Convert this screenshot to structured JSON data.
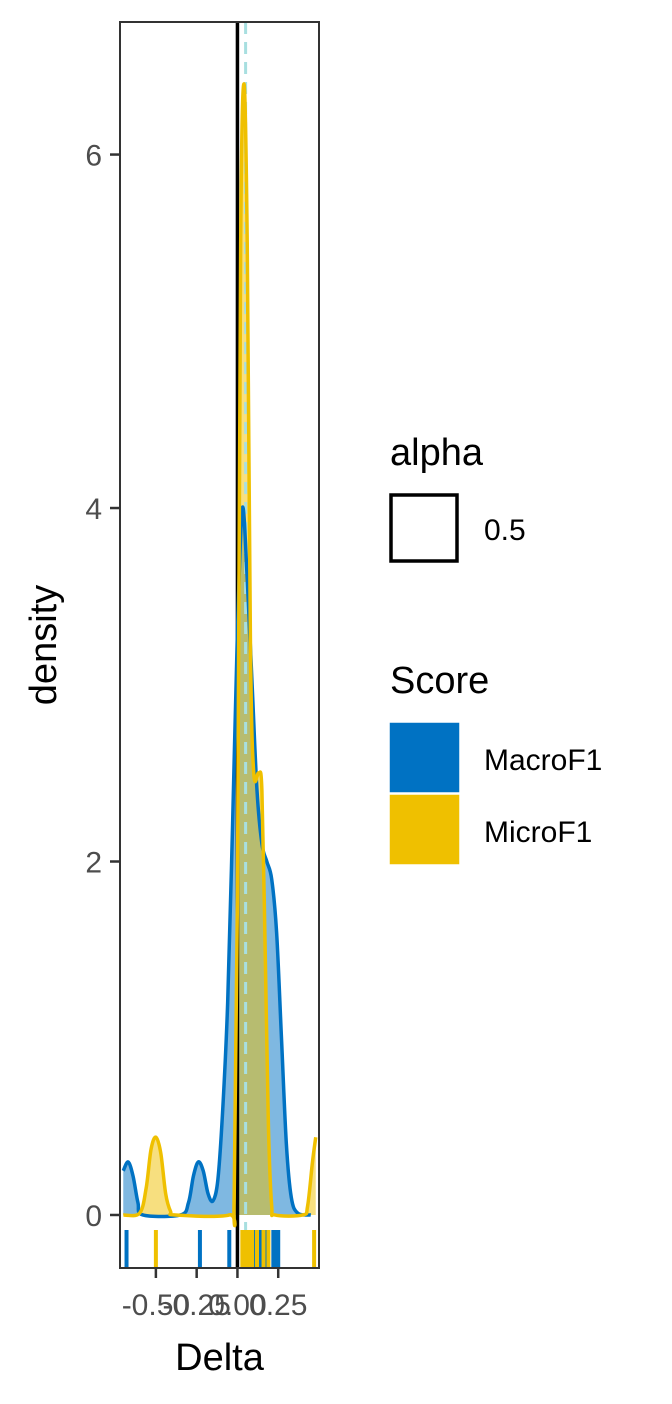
{
  "chart_data": {
    "type": "area",
    "title": "",
    "xlabel": "Delta",
    "ylabel": "density",
    "xlim": [
      -0.72,
      0.5
    ],
    "ylim": [
      -0.3,
      6.75
    ],
    "x_ticks": [
      -0.5,
      -0.25,
      0.0,
      0.25
    ],
    "x_tick_labels": [
      "-0.50",
      "-0.25",
      "0.00",
      "0.25"
    ],
    "y_ticks": [
      0,
      2,
      4,
      6
    ],
    "y_tick_labels": [
      "0",
      "2",
      "4",
      "6"
    ],
    "grid": false,
    "legend_position": "right",
    "reference_lines": [
      {
        "x": 0.0,
        "style": "solid",
        "color": "#000000"
      },
      {
        "x": 0.05,
        "style": "dashed",
        "color": "#a8dfe0"
      }
    ],
    "series": [
      {
        "name": "MacroF1",
        "color": "#0072c3",
        "points": [
          [
            -0.7,
            0.25
          ],
          [
            -0.67,
            0.3
          ],
          [
            -0.64,
            0.22
          ],
          [
            -0.61,
            0.07
          ],
          [
            -0.58,
            0.0
          ],
          [
            -0.35,
            0.0
          ],
          [
            -0.3,
            0.07
          ],
          [
            -0.27,
            0.22
          ],
          [
            -0.24,
            0.3
          ],
          [
            -0.21,
            0.25
          ],
          [
            -0.18,
            0.12
          ],
          [
            -0.15,
            0.08
          ],
          [
            -0.12,
            0.2
          ],
          [
            -0.09,
            0.6
          ],
          [
            -0.06,
            1.2
          ],
          [
            -0.03,
            2.2
          ],
          [
            0.0,
            3.3
          ],
          [
            0.03,
            4.0
          ],
          [
            0.06,
            3.6
          ],
          [
            0.09,
            3.0
          ],
          [
            0.12,
            2.4
          ],
          [
            0.15,
            2.1
          ],
          [
            0.18,
            2.0
          ],
          [
            0.21,
            1.9
          ],
          [
            0.24,
            1.6
          ],
          [
            0.27,
            1.0
          ],
          [
            0.3,
            0.4
          ],
          [
            0.33,
            0.1
          ],
          [
            0.37,
            0.01
          ],
          [
            0.45,
            0.0
          ]
        ],
        "rug": [
          -0.68,
          -0.23,
          -0.05,
          0.11,
          0.14,
          0.18,
          0.22,
          0.24,
          0.25
        ]
      },
      {
        "name": "MicroF1",
        "color": "#efc000",
        "points": [
          [
            -0.7,
            0.0
          ],
          [
            -0.6,
            0.01
          ],
          [
            -0.56,
            0.15
          ],
          [
            -0.53,
            0.37
          ],
          [
            -0.5,
            0.44
          ],
          [
            -0.47,
            0.35
          ],
          [
            -0.44,
            0.12
          ],
          [
            -0.41,
            0.02
          ],
          [
            -0.38,
            0.0
          ],
          [
            -0.05,
            0.0
          ],
          [
            -0.02,
            0.1
          ],
          [
            0.0,
            1.8
          ],
          [
            0.02,
            5.5
          ],
          [
            0.04,
            6.4
          ],
          [
            0.06,
            5.5
          ],
          [
            0.08,
            3.2
          ],
          [
            0.1,
            2.5
          ],
          [
            0.13,
            2.5
          ],
          [
            0.15,
            2.4
          ],
          [
            0.17,
            1.5
          ],
          [
            0.19,
            0.5
          ],
          [
            0.21,
            0.05
          ],
          [
            0.23,
            0.0
          ],
          [
            0.4,
            0.0
          ],
          [
            0.43,
            0.05
          ],
          [
            0.46,
            0.3
          ],
          [
            0.48,
            0.44
          ]
        ],
        "rug": [
          -0.5,
          0.03,
          0.05,
          0.07,
          0.09,
          0.12,
          0.16,
          0.19,
          0.47
        ]
      }
    ],
    "legends": [
      {
        "title": "alpha",
        "items": [
          {
            "label": "0.5",
            "style": "outline-box"
          }
        ]
      },
      {
        "title": "Score",
        "items": [
          {
            "label": "MacroF1",
            "color": "#0072c3"
          },
          {
            "label": "MicroF1",
            "color": "#efc000"
          }
        ]
      }
    ]
  }
}
